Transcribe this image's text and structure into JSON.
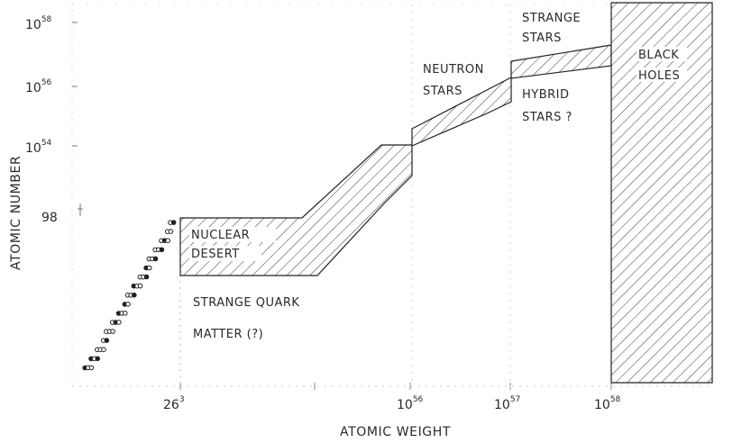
{
  "chart_data": {
    "type": "area",
    "title": "",
    "xlabel": "ATOMIC WEIGHT",
    "ylabel": "ATOMIC NUMBER",
    "x_ticks": [
      {
        "base": "26",
        "exp": "3"
      },
      {
        "base": "10",
        "exp": "56"
      },
      {
        "base": "10",
        "exp": "57"
      },
      {
        "base": "10",
        "exp": "58"
      }
    ],
    "y_ticks": [
      {
        "base": "98",
        "exp": ""
      },
      {
        "base": "10",
        "exp": "54"
      },
      {
        "base": "10",
        "exp": "56"
      },
      {
        "base": "10",
        "exp": "58"
      }
    ],
    "regions": [
      {
        "name": "nuclear-desert",
        "lines": [
          "NUCLEAR",
          "DESERT"
        ]
      },
      {
        "name": "strange-quark-matter",
        "lines": [
          "STRANGE QUARK",
          "MATTER (?)"
        ]
      },
      {
        "name": "neutron-stars",
        "lines": [
          "NEUTRON",
          "STARS"
        ]
      },
      {
        "name": "strange-stars",
        "lines": [
          "STRANGE",
          "STARS"
        ]
      },
      {
        "name": "hybrid-stars",
        "lines": [
          "HYBRID",
          "STARS ?"
        ]
      },
      {
        "name": "black-holes",
        "lines": [
          "BLACK",
          "HOLES"
        ]
      }
    ],
    "grid": false
  }
}
